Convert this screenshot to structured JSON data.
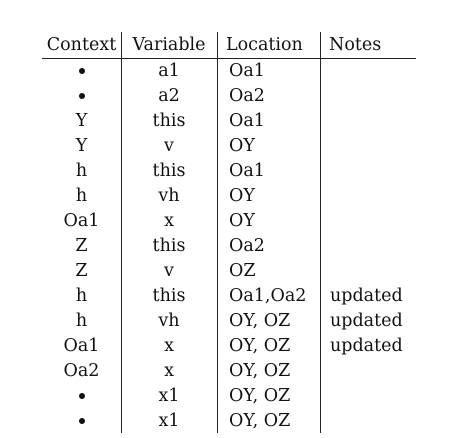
{
  "columns": [
    "Context",
    "Variable",
    "Location",
    "Notes"
  ],
  "rows": [
    {
      "context": "",
      "context_bullet": true,
      "variable": "a1",
      "location": "Oa1",
      "notes": ""
    },
    {
      "context": "",
      "context_bullet": true,
      "variable": "a2",
      "location": "Oa2",
      "notes": ""
    },
    {
      "context": "Y",
      "context_bullet": false,
      "variable": "this",
      "location": "Oa1",
      "notes": ""
    },
    {
      "context": "Y",
      "context_bullet": false,
      "variable": "v",
      "location": "OY",
      "notes": ""
    },
    {
      "context": "h",
      "context_bullet": false,
      "variable": "this",
      "location": "Oa1",
      "notes": ""
    },
    {
      "context": "h",
      "context_bullet": false,
      "variable": "vh",
      "location": "OY",
      "notes": ""
    },
    {
      "context": "Oa1",
      "context_bullet": false,
      "variable": "x",
      "location": "OY",
      "notes": ""
    },
    {
      "context": "Z",
      "context_bullet": false,
      "variable": "this",
      "location": "Oa2",
      "notes": ""
    },
    {
      "context": "Z",
      "context_bullet": false,
      "variable": "v",
      "location": "OZ",
      "notes": ""
    },
    {
      "context": "h",
      "context_bullet": false,
      "variable": "this",
      "location": "Oa1,Oa2",
      "notes": "updated"
    },
    {
      "context": "h",
      "context_bullet": false,
      "variable": "vh",
      "location": "OY, OZ",
      "notes": "updated"
    },
    {
      "context": "Oa1",
      "context_bullet": false,
      "variable": "x",
      "location": "OY, OZ",
      "notes": "updated"
    },
    {
      "context": "Oa2",
      "context_bullet": false,
      "variable": "x",
      "location": "OY, OZ",
      "notes": ""
    },
    {
      "context": "",
      "context_bullet": true,
      "variable": "x1",
      "location": "OY, OZ",
      "notes": ""
    },
    {
      "context": "",
      "context_bullet": true,
      "variable": "x1",
      "location": "OY, OZ",
      "notes": ""
    }
  ]
}
